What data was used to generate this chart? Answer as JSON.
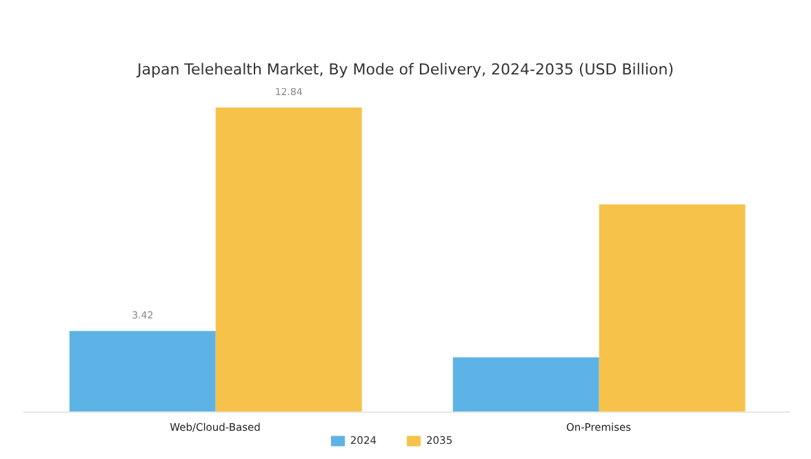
{
  "chart_data": {
    "type": "bar",
    "title": "Japan Telehealth Market, By Mode of Delivery, 2024-2035 (USD Billion)",
    "categories": [
      "Web/Cloud-Based",
      "On-Premises"
    ],
    "series": [
      {
        "name": "2024",
        "color": "#5db3e6",
        "values": [
          3.42,
          2.31
        ],
        "value_labels": [
          "3.42",
          null
        ]
      },
      {
        "name": "2035",
        "color": "#f7c24a",
        "values": [
          12.84,
          8.76
        ],
        "value_labels": [
          "12.84",
          null
        ]
      }
    ],
    "legend": "bottom",
    "grid": false
  }
}
